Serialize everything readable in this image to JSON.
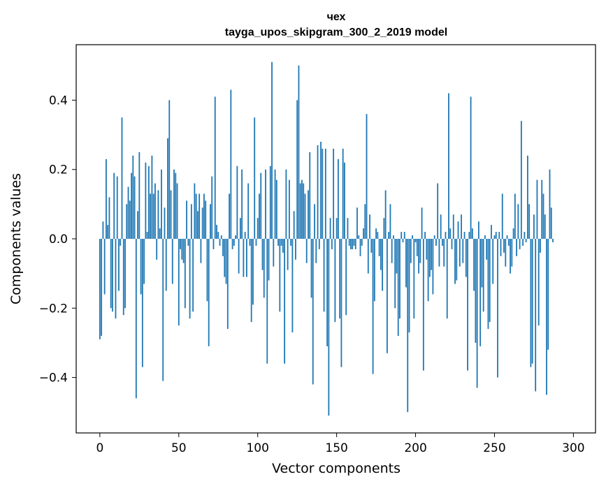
{
  "chart_data": {
    "type": "bar",
    "title": "чех",
    "subtitle": "tayga_upos_skipgram_300_2_2019 model",
    "xlabel": "Vector components",
    "ylabel": "Components values",
    "xlim": [
      -15,
      314
    ],
    "ylim": [
      -0.56,
      0.56
    ],
    "xticks": [
      0,
      50,
      100,
      150,
      200,
      250,
      300
    ],
    "yticks": [
      -0.4,
      -0.2,
      0.0,
      0.2,
      0.4
    ],
    "ytick_labels": [
      "−0.4",
      "−0.2",
      "0.0",
      "0.2",
      "0.4"
    ],
    "color": "#1f77b4",
    "grid": false,
    "x_start": 0,
    "values": [
      -0.29,
      -0.28,
      0.05,
      -0.16,
      0.23,
      0.04,
      0.12,
      -0.2,
      -0.21,
      0.19,
      -0.23,
      0.18,
      -0.15,
      -0.02,
      0.35,
      -0.22,
      -0.2,
      0.1,
      0.15,
      0.11,
      0.19,
      0.24,
      0.18,
      -0.46,
      0.08,
      0.25,
      -0.16,
      -0.37,
      -0.13,
      0.22,
      0.02,
      0.21,
      0.13,
      0.24,
      0.13,
      0.16,
      -0.06,
      0.14,
      0.03,
      0.2,
      -0.41,
      0.09,
      -0.15,
      0.29,
      0.4,
      0.14,
      -0.13,
      0.2,
      0.19,
      0.16,
      -0.25,
      -0.03,
      -0.06,
      -0.07,
      -0.2,
      0.11,
      -0.02,
      -0.23,
      0.1,
      -0.21,
      0.16,
      0.13,
      0.08,
      0.13,
      -0.07,
      0.09,
      0.13,
      0.11,
      -0.18,
      -0.31,
      0.1,
      0.18,
      -0.03,
      0.41,
      0.04,
      0.02,
      -0.02,
      0.01,
      -0.05,
      -0.11,
      -0.13,
      -0.26,
      0.13,
      0.43,
      -0.03,
      -0.02,
      0.01,
      0.21,
      -0.1,
      0.06,
      0.2,
      -0.11,
      0.02,
      -0.11,
      0.16,
      -0.02,
      -0.24,
      -0.19,
      0.35,
      -0.02,
      0.06,
      0.13,
      0.19,
      -0.09,
      -0.17,
      0.2,
      -0.36,
      -0.12,
      0.21,
      0.51,
      -0.08,
      0.2,
      0.17,
      -0.02,
      -0.21,
      -0.02,
      -0.04,
      -0.36,
      0.2,
      -0.09,
      0.17,
      -0.02,
      -0.27,
      0.08,
      -0.06,
      0.4,
      0.5,
      0.16,
      0.17,
      0.16,
      0.13,
      -0.07,
      0.14,
      0.25,
      -0.17,
      -0.42,
      0.1,
      -0.07,
      0.27,
      -0.03,
      0.28,
      0.26,
      -0.21,
      0.26,
      -0.31,
      -0.51,
      0.06,
      -0.03,
      0.26,
      -0.24,
      0.06,
      0.23,
      -0.23,
      -0.37,
      0.26,
      0.22,
      -0.22,
      0.06,
      -0.02,
      -0.03,
      -0.03,
      -0.02,
      -0.03,
      0.09,
      0.01,
      -0.05,
      -0.02,
      0.03,
      0.1,
      0.36,
      -0.1,
      0.07,
      -0.04,
      -0.39,
      -0.18,
      0.03,
      0.02,
      -0.05,
      -0.09,
      -0.15,
      0.06,
      0.14,
      -0.33,
      0.02,
      0.1,
      -0.07,
      0.01,
      -0.2,
      -0.1,
      -0.28,
      -0.23,
      0.02,
      -0.01,
      0.02,
      -0.14,
      -0.5,
      -0.27,
      -0.07,
      0.01,
      -0.23,
      -0.01,
      -0.05,
      -0.1,
      -0.07,
      0.09,
      -0.38,
      0.02,
      -0.06,
      -0.18,
      -0.11,
      -0.09,
      -0.16,
      0.01,
      -0.02,
      0.16,
      -0.08,
      0.07,
      -0.02,
      -0.08,
      0.02,
      -0.23,
      0.42,
      0.03,
      -0.03,
      0.07,
      -0.13,
      -0.12,
      0.05,
      -0.08,
      0.07,
      -0.07,
      0.02,
      -0.11,
      -0.38,
      0.02,
      0.41,
      0.03,
      -0.15,
      -0.3,
      -0.43,
      0.05,
      -0.31,
      -0.14,
      -0.21,
      0.01,
      -0.06,
      -0.26,
      -0.24,
      0.04,
      -0.13,
      0.01,
      0.02,
      -0.4,
      0.02,
      -0.05,
      0.13,
      -0.04,
      -0.08,
      0.01,
      -0.02,
      -0.1,
      -0.08,
      0.03,
      0.13,
      -0.05,
      0.1,
      -0.03,
      0.34,
      -0.02,
      0.02,
      -0.01,
      0.24,
      0.1,
      -0.37,
      -0.36,
      0.07,
      -0.44,
      0.17,
      -0.25,
      -0.04,
      0.17,
      0.13,
      0.07,
      -0.45,
      -0.32,
      0.2,
      0.09,
      -0.01
    ]
  }
}
